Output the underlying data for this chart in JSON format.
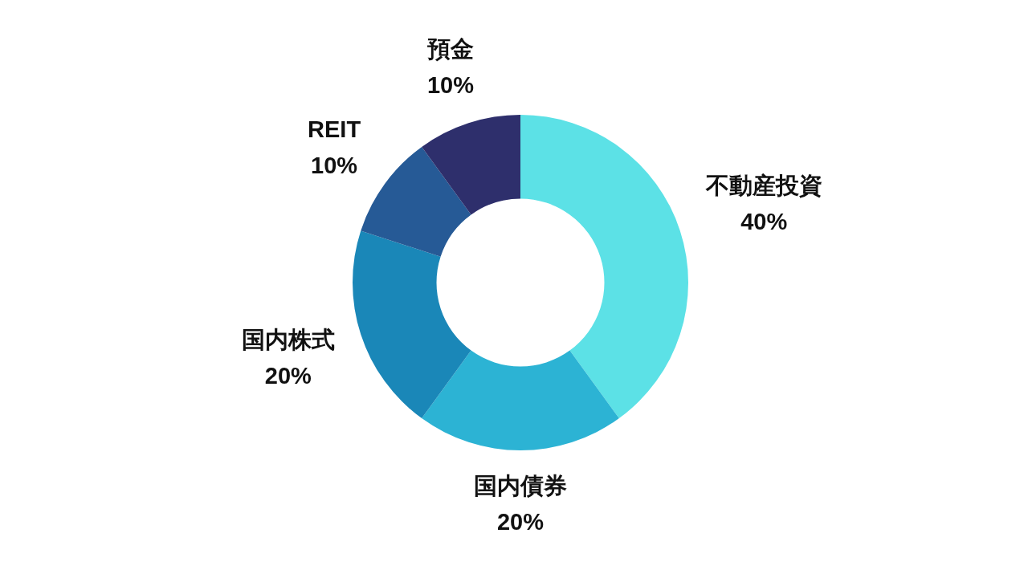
{
  "chart_data": {
    "type": "donut",
    "categories": [
      "不動産投資",
      "国内債券",
      "国内株式",
      "REIT",
      "預金"
    ],
    "values": [
      40,
      20,
      20,
      10,
      10
    ],
    "colors": [
      "#5ce1e6",
      "#2cb3d4",
      "#1a87b8",
      "#265a96",
      "#2e2f6c"
    ],
    "value_labels": [
      "40%",
      "20%",
      "20%",
      "10%",
      "10%"
    ]
  }
}
